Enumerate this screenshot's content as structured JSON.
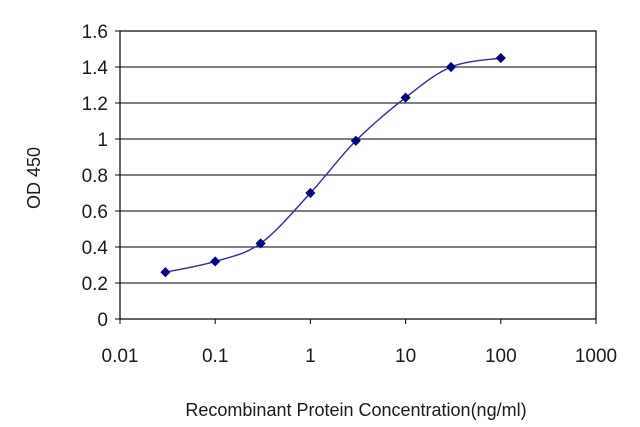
{
  "chart_data": {
    "type": "line",
    "xlabel": "Recombinant  Protein Concentration(ng/ml)",
    "ylabel": "OD 450",
    "xscale": "log",
    "xlim": [
      0.01,
      1000
    ],
    "ylim": [
      0,
      1.6
    ],
    "x_ticks": [
      "0.01",
      "0.1",
      "1",
      "10",
      "100",
      "1000"
    ],
    "y_ticks": [
      "0",
      "0.2",
      "0.4",
      "0.6",
      "0.8",
      "1",
      "1.2",
      "1.4",
      "1.6"
    ],
    "grid": "horizontal",
    "legend": "none",
    "series": [
      {
        "color": "#000080",
        "marker": "diamond",
        "x": [
          0.03,
          0.1,
          0.3,
          1,
          3,
          10,
          30,
          100
        ],
        "y": [
          0.26,
          0.32,
          0.42,
          0.7,
          0.99,
          1.23,
          1.4,
          1.45
        ]
      }
    ]
  }
}
